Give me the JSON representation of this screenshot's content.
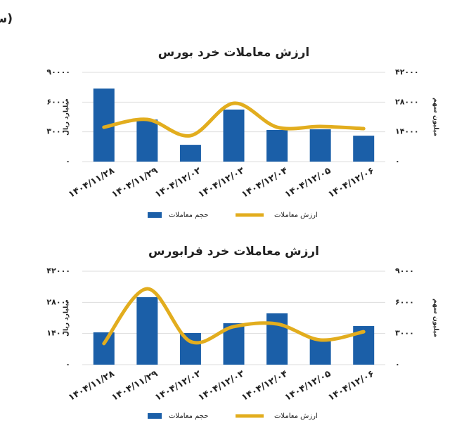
{
  "header": "(سهام + حق تقدم)",
  "chart_data": [
    {
      "type": "combo",
      "title": "ارزش معاملات خرد بورس",
      "categories": [
        "۱۴۰۴/۱۱/۲۸",
        "۱۴۰۴/۱۱/۲۹",
        "۱۴۰۴/۱۲/۰۲",
        "۱۴۰۴/۱۲/۰۳",
        "۱۴۰۴/۱۲/۰۴",
        "۱۴۰۴/۱۲/۰۵",
        "۱۴۰۴/۱۲/۰۶"
      ],
      "series": [
        {
          "name": "حجم معاملات",
          "type": "bar",
          "axis": "y2",
          "color": "#1b5fa8",
          "values": [
            34400,
            19800,
            7900,
            24500,
            14900,
            15200,
            12200
          ]
        },
        {
          "name": "ارزش معاملات",
          "type": "line",
          "color": "#e2ad1e",
          "values": [
            34700,
            42500,
            26200,
            58800,
            34700,
            35400,
            33300
          ]
        }
      ],
      "ylabel": "میلیارد ریال",
      "y2label": "میلیون سهم",
      "ylim": [
        0,
        90000
      ],
      "yticks": [
        {
          "value": 0,
          "label": "۰"
        },
        {
          "value": 30000,
          "label": "۳۰۰۰۰"
        },
        {
          "value": 60000,
          "label": "۶۰۰۰۰"
        },
        {
          "value": 90000,
          "label": "۹۰۰۰۰"
        }
      ],
      "y2lim": [
        0,
        42000
      ],
      "y2ticks": [
        {
          "value": 0,
          "label": "۰"
        },
        {
          "value": 14000,
          "label": "۱۴۰۰۰"
        },
        {
          "value": 28000,
          "label": "۲۸۰۰۰"
        },
        {
          "value": 42000,
          "label": "۴۲۰۰۰"
        }
      ],
      "grid": true
    },
    {
      "type": "combo",
      "title": "ارزش معاملات خرد فرابورس",
      "categories": [
        "۱۴۰۴/۱۱/۲۸",
        "۱۴۰۴/۱۱/۲۹",
        "۱۴۰۴/۱۲/۰۲",
        "۱۴۰۴/۱۲/۰۳",
        "۱۴۰۴/۱۲/۰۴",
        "۱۴۰۴/۱۲/۰۵",
        "۱۴۰۴/۱۲/۰۶"
      ],
      "series": [
        {
          "name": "حجم معاملات",
          "type": "bar",
          "axis": "y2",
          "color": "#1b5fa8",
          "values": [
            3110,
            6500,
            3050,
            3990,
            4940,
            2500,
            3720
          ]
        },
        {
          "name": "ارزش معاملات",
          "type": "line",
          "color": "#e2ad1e",
          "values": [
            9500,
            34100,
            10400,
            17100,
            18300,
            11100,
            14800
          ]
        }
      ],
      "ylabel": "میلیارد ریال",
      "y2label": "میلیون سهم",
      "ylim": [
        0,
        42000
      ],
      "yticks": [
        {
          "value": 0,
          "label": "۰"
        },
        {
          "value": 14000,
          "label": "۱۴۰۰۰"
        },
        {
          "value": 28000,
          "label": "۲۸۰۰۰"
        },
        {
          "value": 42000,
          "label": "۴۲۰۰۰"
        }
      ],
      "y2lim": [
        0,
        9000
      ],
      "y2ticks": [
        {
          "value": 0,
          "label": "۰"
        },
        {
          "value": 3000,
          "label": "۳۰۰۰"
        },
        {
          "value": 6000,
          "label": "۶۰۰۰"
        },
        {
          "value": 9000,
          "label": "۹۰۰۰"
        }
      ],
      "grid": true
    }
  ]
}
